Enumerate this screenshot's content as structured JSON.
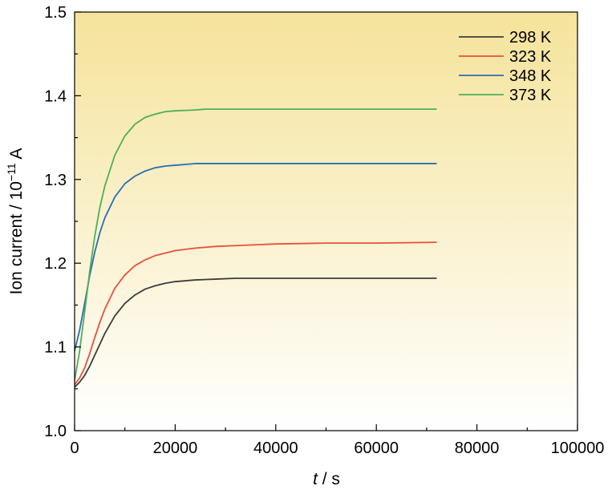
{
  "chart_data": {
    "type": "line",
    "xlabel": "t / s",
    "xlabel_italic": "t",
    "xlabel_rest": " / s",
    "ylabel": "Ion current / 10",
    "ylabel_exp": "−11",
    "ylabel_unit": " A",
    "xlim": [
      0,
      100000
    ],
    "ylim": [
      1.0,
      1.5
    ],
    "x_ticks": [
      0,
      20000,
      40000,
      60000,
      80000,
      100000
    ],
    "x_tick_labels": [
      "0",
      "20000",
      "40000",
      "60000",
      "80000",
      "100000"
    ],
    "y_ticks": [
      1.0,
      1.1,
      1.2,
      1.3,
      1.4,
      1.5
    ],
    "y_tick_labels": [
      "1.0",
      "1.1",
      "1.2",
      "1.3",
      "1.4",
      "1.5"
    ],
    "legend_position": "top-right",
    "background_gradient": [
      "#f5e39a",
      "#ffffff"
    ],
    "series": [
      {
        "name": "298 K",
        "color": "#3c3c3c",
        "x": [
          0,
          1000,
          2000,
          3000,
          4000,
          5000,
          6000,
          8000,
          10000,
          12000,
          14000,
          16000,
          18000,
          20000,
          24000,
          28000,
          32000,
          36000,
          40000,
          50000,
          60000,
          72000
        ],
        "y": [
          1.052,
          1.058,
          1.066,
          1.077,
          1.09,
          1.103,
          1.116,
          1.137,
          1.152,
          1.162,
          1.169,
          1.173,
          1.176,
          1.178,
          1.18,
          1.181,
          1.182,
          1.182,
          1.182,
          1.182,
          1.182,
          1.182
        ]
      },
      {
        "name": "323 K",
        "color": "#e8503c",
        "x": [
          0,
          1000,
          2000,
          3000,
          4000,
          5000,
          6000,
          8000,
          10000,
          12000,
          14000,
          16000,
          18000,
          20000,
          24000,
          28000,
          32000,
          36000,
          40000,
          50000,
          60000,
          72000
        ],
        "y": [
          1.055,
          1.063,
          1.075,
          1.092,
          1.111,
          1.129,
          1.145,
          1.17,
          1.186,
          1.197,
          1.204,
          1.209,
          1.212,
          1.215,
          1.218,
          1.22,
          1.221,
          1.222,
          1.223,
          1.224,
          1.224,
          1.225
        ]
      },
      {
        "name": "348 K",
        "color": "#2a6db5",
        "x": [
          0,
          1000,
          2000,
          3000,
          4000,
          5000,
          6000,
          8000,
          10000,
          12000,
          14000,
          16000,
          18000,
          20000,
          24000,
          26000,
          30000,
          40000,
          50000,
          60000,
          72000
        ],
        "y": [
          1.095,
          1.12,
          1.152,
          1.185,
          1.213,
          1.236,
          1.254,
          1.279,
          1.295,
          1.304,
          1.31,
          1.314,
          1.316,
          1.317,
          1.319,
          1.319,
          1.319,
          1.319,
          1.319,
          1.319,
          1.319
        ]
      },
      {
        "name": "373 K",
        "color": "#4caf5a",
        "x": [
          0,
          1000,
          2000,
          3000,
          4000,
          5000,
          6000,
          8000,
          10000,
          12000,
          14000,
          16000,
          18000,
          20000,
          24000,
          26000,
          30000,
          40000,
          50000,
          60000,
          72000
        ],
        "y": [
          1.06,
          1.095,
          1.142,
          1.19,
          1.232,
          1.266,
          1.292,
          1.329,
          1.352,
          1.366,
          1.374,
          1.378,
          1.381,
          1.382,
          1.383,
          1.384,
          1.384,
          1.384,
          1.384,
          1.384,
          1.384
        ]
      }
    ]
  }
}
